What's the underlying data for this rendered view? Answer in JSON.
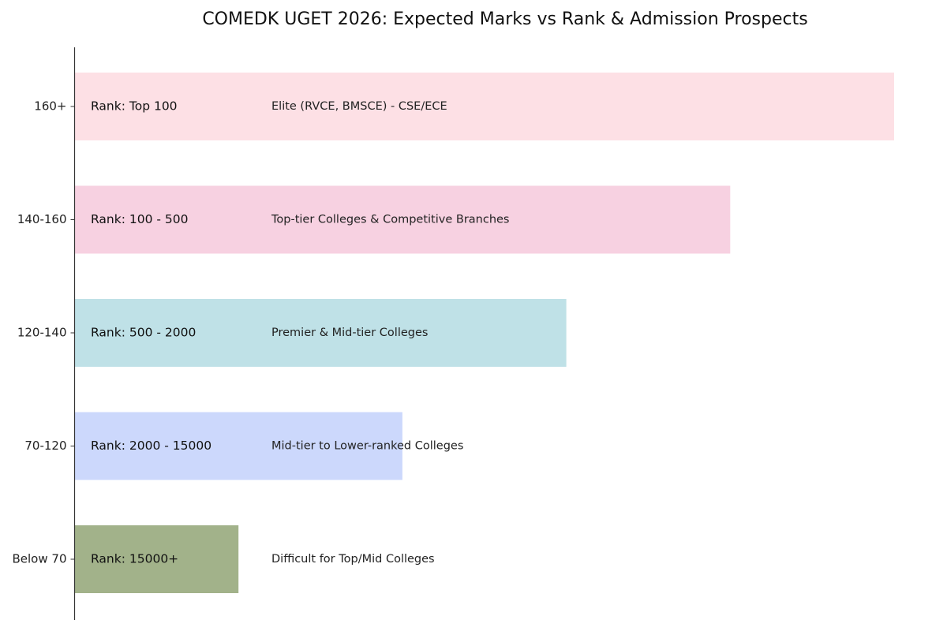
{
  "chart_data": {
    "type": "bar",
    "orientation": "horizontal",
    "title": "COMEDK UGET 2026: Expected Marks vs Rank & Admission Prospects",
    "xlabel": "",
    "ylabel": "",
    "grid": false,
    "legend": "none",
    "categories": [
      "160+",
      "140-160",
      "120-140",
      "70-120",
      "Below 70"
    ],
    "values": [
      5,
      4,
      3,
      2,
      1
    ],
    "xlim": [
      0,
      5
    ],
    "rank_labels": [
      "Rank: Top 100",
      "Rank: 100 - 500",
      "Rank: 500 - 2000",
      "Rank: 2000 - 15000",
      "Rank: 15000+"
    ],
    "descriptions": [
      "Elite (RVCE, BMSCE) - CSE/ECE",
      "Top-tier Colleges & Competitive Branches",
      "Premier & Mid-tier Colleges",
      "Mid-tier to Lower-ranked Colleges",
      "Difficult for Top/Mid Colleges"
    ],
    "colors": [
      "#fde0e5",
      "#f7d1e1",
      "#bfe1e7",
      "#ccd8fc",
      "#a2b28a"
    ]
  }
}
